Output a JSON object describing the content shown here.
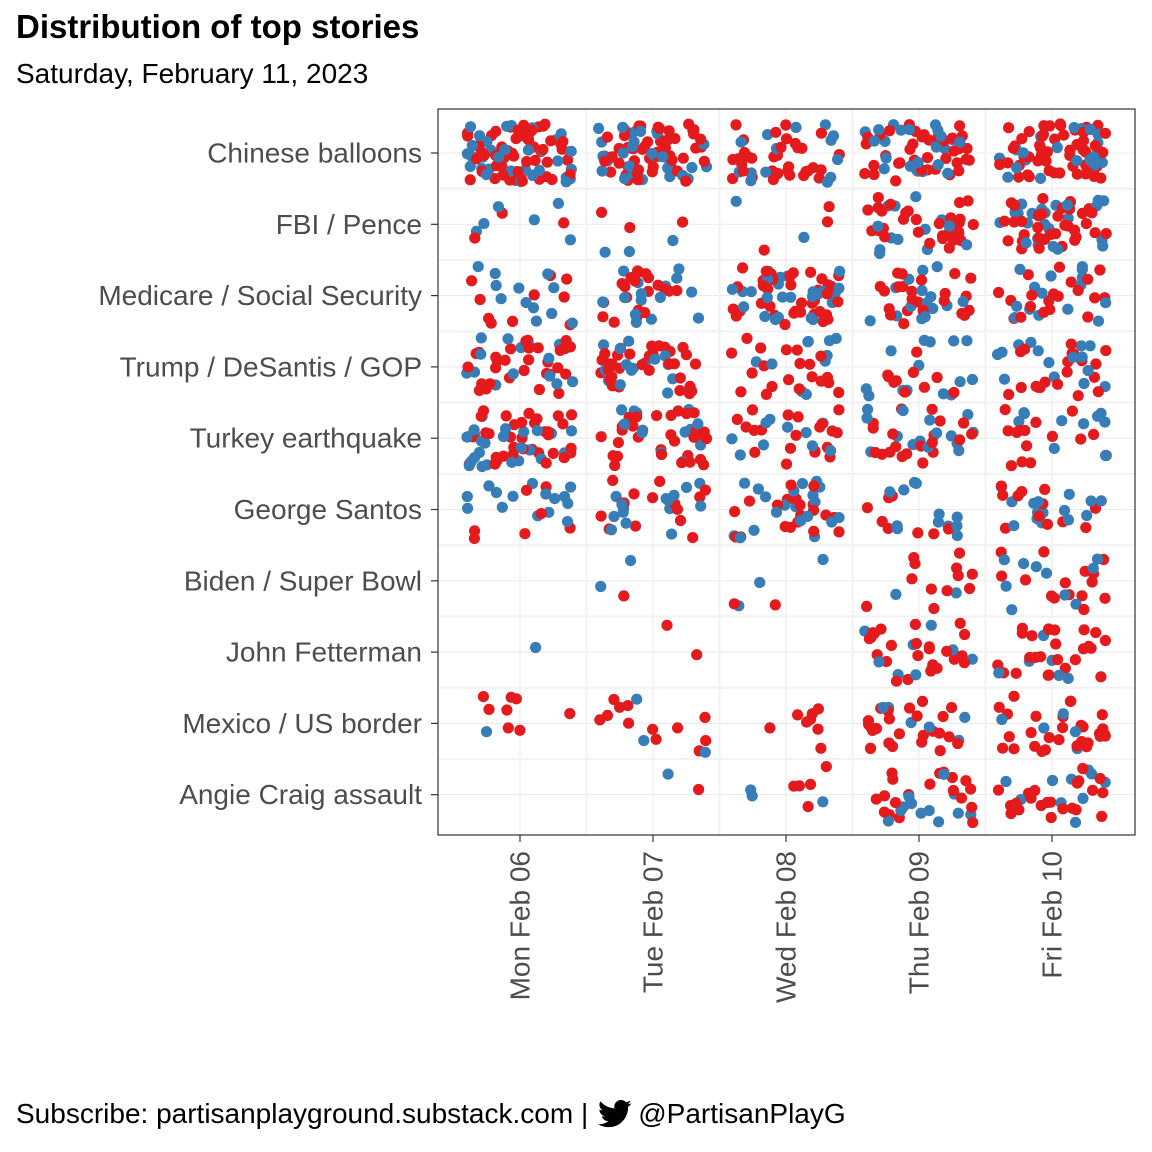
{
  "title": "Distribution of top stories",
  "subtitle": "Saturday, February 11, 2023",
  "caption": {
    "prefix": "Subscribe: partisanplayground.substack.com |",
    "icon": "twitter-bird-icon",
    "handle": "@PartisanPlayG"
  },
  "chart_data": {
    "type": "scatter",
    "jittered": true,
    "x_categories": [
      "Mon Feb 06",
      "Tue Feb 07",
      "Wed Feb 08",
      "Thu Feb 09",
      "Fri Feb 10"
    ],
    "y_categories": [
      "Chinese balloons",
      "FBI / Pence",
      "Medicare / Social Security",
      "Trump / DeSantis / GOP",
      "Turkey earthquake",
      "George Santos",
      "Biden / Super Bowl",
      "John Fetterman",
      "Mexico / US border",
      "Angie Craig assault"
    ],
    "colors": {
      "blue": "#377eb8",
      "red": "#e41a1c"
    },
    "grid": true,
    "legend": "none",
    "counts": [
      {
        "story": "Chinese balloons",
        "per_day": [
          {
            "blue": 35,
            "red": 55
          },
          {
            "blue": 30,
            "red": 55
          },
          {
            "blue": 14,
            "red": 34
          },
          {
            "blue": 25,
            "red": 40
          },
          {
            "blue": 20,
            "red": 55
          }
        ]
      },
      {
        "story": "FBI / Pence",
        "per_day": [
          {
            "blue": 6,
            "red": 3
          },
          {
            "blue": 3,
            "red": 3
          },
          {
            "blue": 2,
            "red": 3
          },
          {
            "blue": 15,
            "red": 30
          },
          {
            "blue": 25,
            "red": 35
          }
        ]
      },
      {
        "story": "Medicare / Social Security",
        "per_day": [
          {
            "blue": 12,
            "red": 10
          },
          {
            "blue": 15,
            "red": 20
          },
          {
            "blue": 25,
            "red": 40
          },
          {
            "blue": 15,
            "red": 25
          },
          {
            "blue": 15,
            "red": 20
          }
        ]
      },
      {
        "story": "Trump / DeSantis / GOP",
        "per_day": [
          {
            "blue": 15,
            "red": 30
          },
          {
            "blue": 15,
            "red": 35
          },
          {
            "blue": 10,
            "red": 20
          },
          {
            "blue": 15,
            "red": 10
          },
          {
            "blue": 15,
            "red": 20
          }
        ]
      },
      {
        "story": "Turkey earthquake",
        "per_day": [
          {
            "blue": 25,
            "red": 35
          },
          {
            "blue": 15,
            "red": 30
          },
          {
            "blue": 10,
            "red": 20
          },
          {
            "blue": 15,
            "red": 20
          },
          {
            "blue": 10,
            "red": 15
          }
        ]
      },
      {
        "story": "George Santos",
        "per_day": [
          {
            "blue": 15,
            "red": 7
          },
          {
            "blue": 15,
            "red": 15
          },
          {
            "blue": 20,
            "red": 20
          },
          {
            "blue": 12,
            "red": 8
          },
          {
            "blue": 15,
            "red": 12
          }
        ]
      },
      {
        "story": "Biden / Super Bowl",
        "per_day": [
          {
            "blue": 0,
            "red": 0
          },
          {
            "blue": 2,
            "red": 1
          },
          {
            "blue": 3,
            "red": 2
          },
          {
            "blue": 2,
            "red": 12
          },
          {
            "blue": 10,
            "red": 15
          }
        ]
      },
      {
        "story": "John Fetterman",
        "per_day": [
          {
            "blue": 1,
            "red": 0
          },
          {
            "blue": 0,
            "red": 2
          },
          {
            "blue": 0,
            "red": 0
          },
          {
            "blue": 8,
            "red": 25
          },
          {
            "blue": 6,
            "red": 25
          }
        ]
      },
      {
        "story": "Mexico / US border",
        "per_day": [
          {
            "blue": 1,
            "red": 8
          },
          {
            "blue": 3,
            "red": 12
          },
          {
            "blue": 0,
            "red": 8
          },
          {
            "blue": 8,
            "red": 25
          },
          {
            "blue": 5,
            "red": 30
          }
        ]
      },
      {
        "story": "Angie Craig assault",
        "per_day": [
          {
            "blue": 0,
            "red": 0
          },
          {
            "blue": 1,
            "red": 1
          },
          {
            "blue": 3,
            "red": 5
          },
          {
            "blue": 12,
            "red": 20
          },
          {
            "blue": 10,
            "red": 22
          }
        ]
      }
    ]
  }
}
